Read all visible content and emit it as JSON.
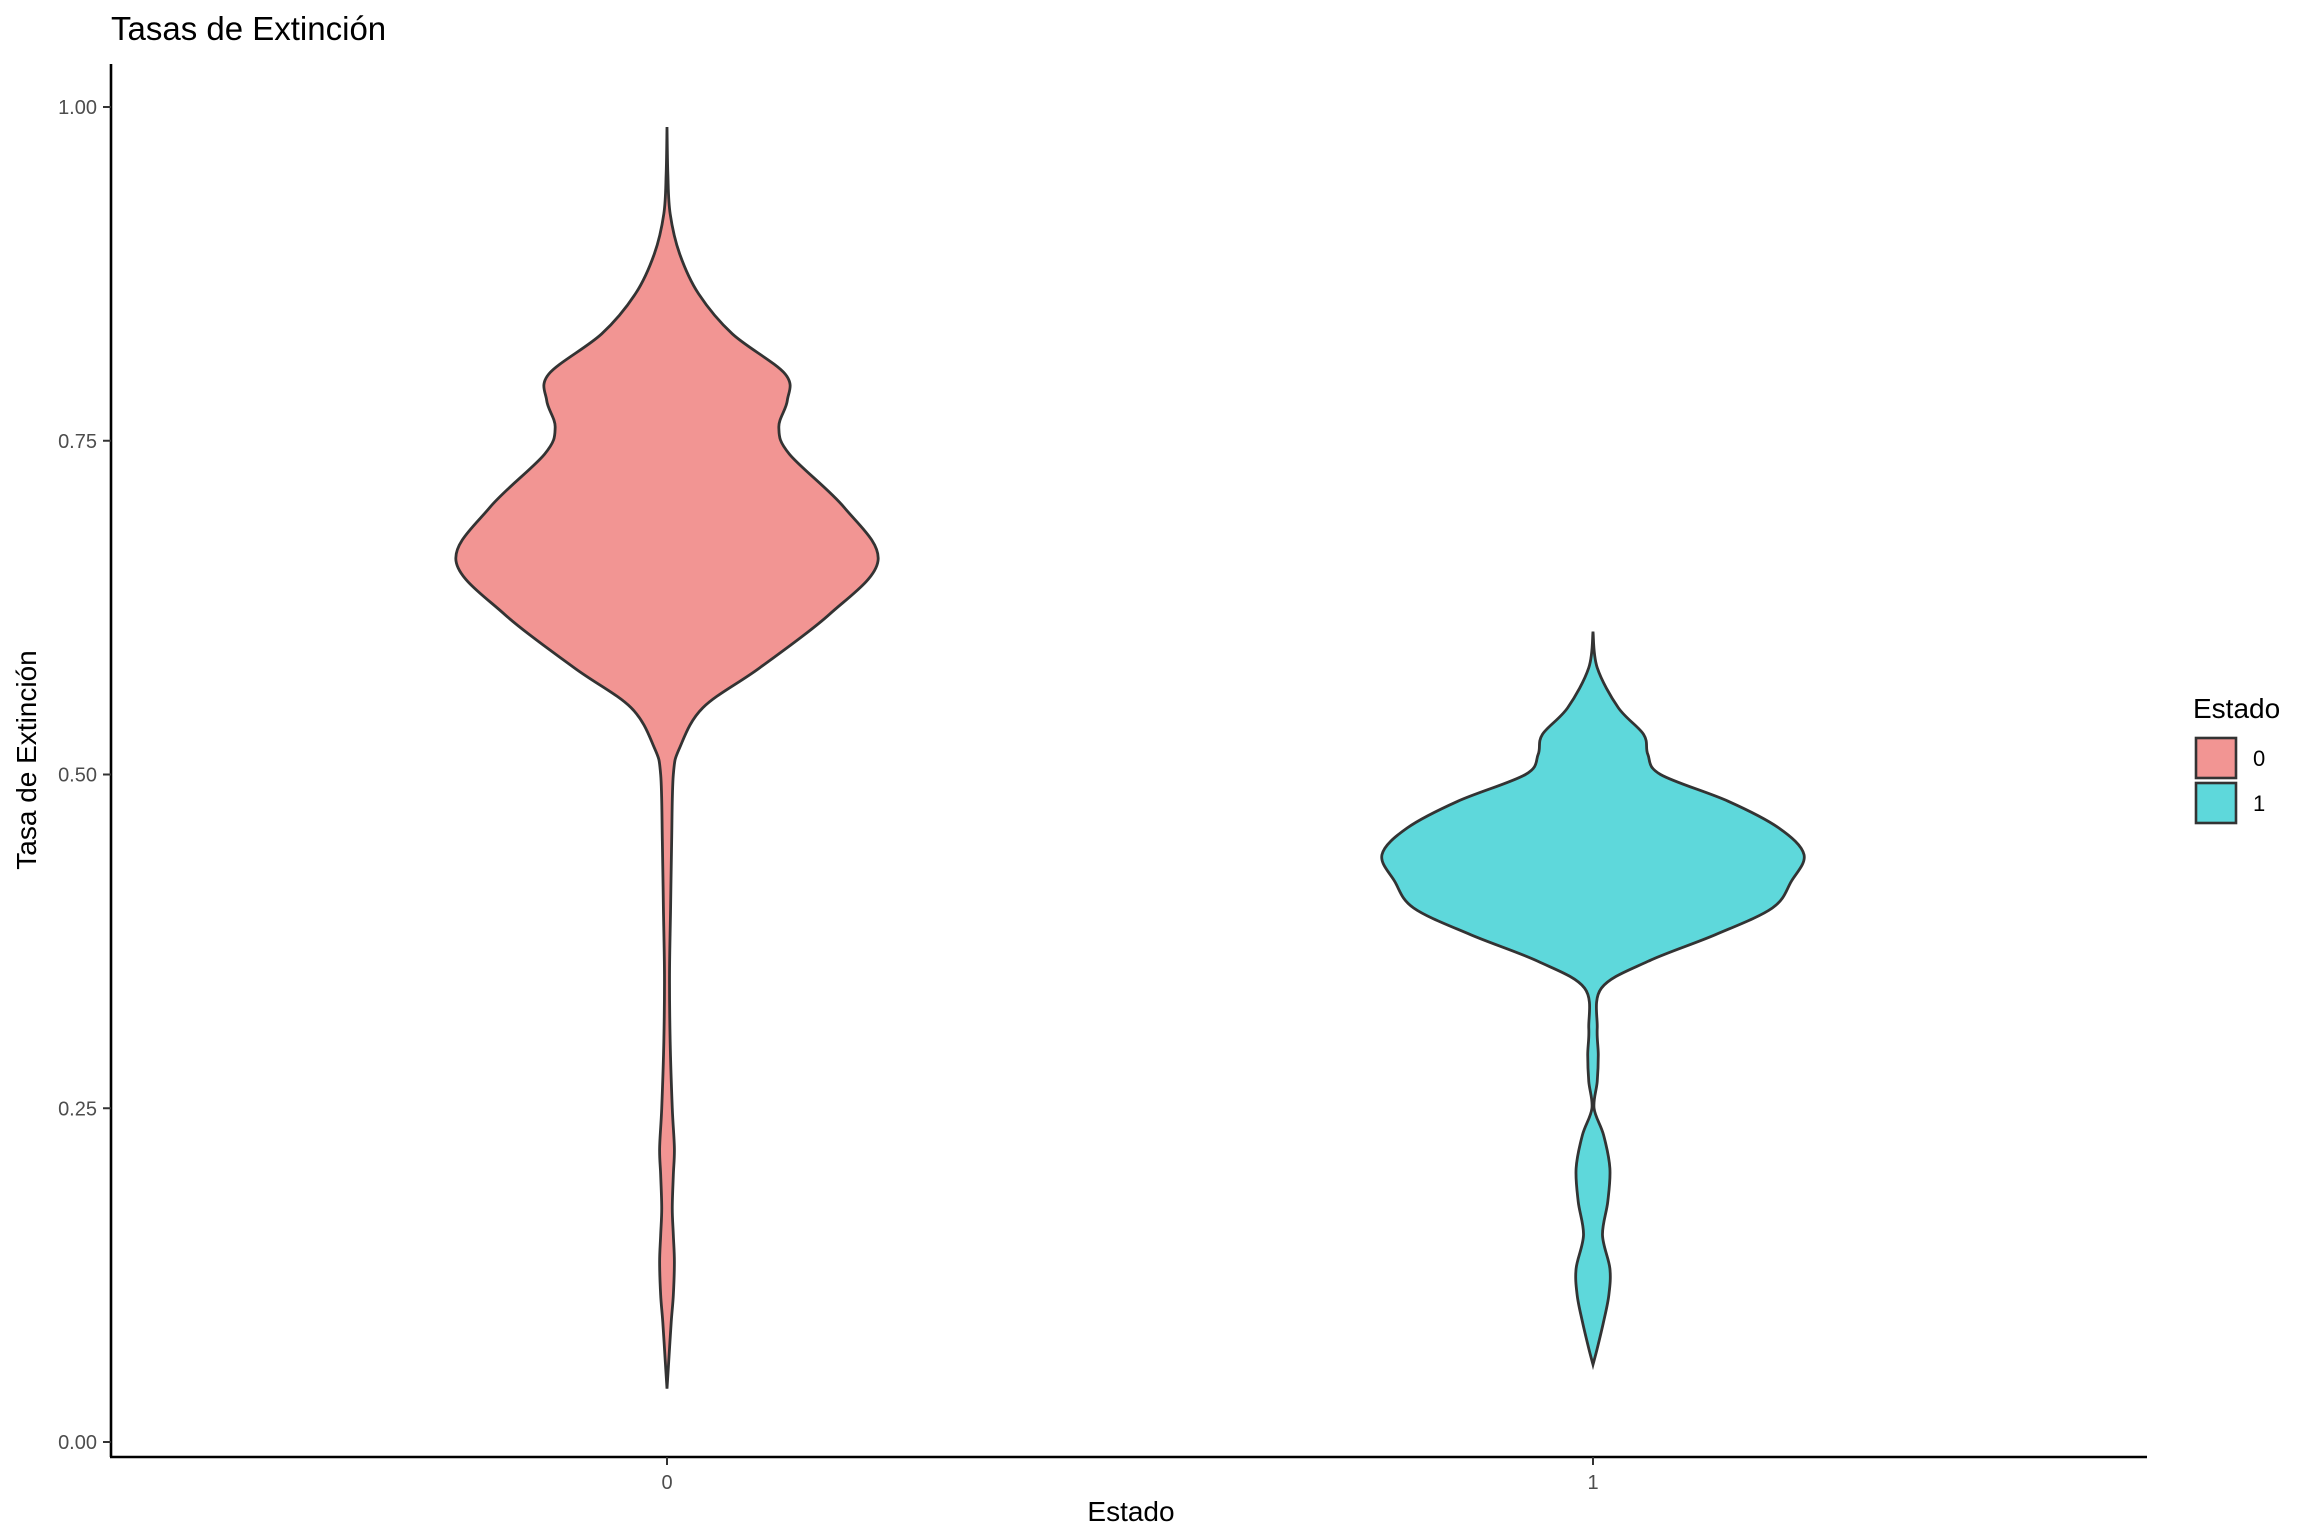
{
  "chart_data": {
    "type": "violin",
    "title": "Tasas de Extinción",
    "xlabel": "Estado",
    "ylabel": "Tasa de Extinción",
    "categories": [
      "0",
      "1"
    ],
    "ylim": [
      0,
      1.0
    ],
    "y_ticks": [
      0.0,
      0.25,
      0.5,
      0.75,
      1.0
    ],
    "y_tick_labels": [
      "0.00",
      "0.25",
      "0.50",
      "0.75",
      "1.00"
    ],
    "grid": false,
    "legend": {
      "title": "Estado",
      "position": "right",
      "entries": [
        {
          "label": "0",
          "color": "#F29593"
        },
        {
          "label": "1",
          "color": "#5ED8DB"
        }
      ]
    },
    "series": [
      {
        "category": "0",
        "color": "#F29593",
        "y_range": [
          0.04,
          0.985
        ],
        "density_profile": [
          [
            0.04,
            0.0
          ],
          [
            0.06,
            0.008
          ],
          [
            0.09,
            0.02
          ],
          [
            0.11,
            0.03
          ],
          [
            0.135,
            0.035
          ],
          [
            0.155,
            0.03
          ],
          [
            0.175,
            0.025
          ],
          [
            0.2,
            0.03
          ],
          [
            0.22,
            0.035
          ],
          [
            0.25,
            0.025
          ],
          [
            0.3,
            0.015
          ],
          [
            0.35,
            0.012
          ],
          [
            0.4,
            0.017
          ],
          [
            0.45,
            0.022
          ],
          [
            0.5,
            0.03
          ],
          [
            0.52,
            0.06
          ],
          [
            0.55,
            0.17
          ],
          [
            0.58,
            0.44
          ],
          [
            0.62,
            0.77
          ],
          [
            0.66,
            1.0
          ],
          [
            0.7,
            0.84
          ],
          [
            0.74,
            0.58
          ],
          [
            0.76,
            0.53
          ],
          [
            0.78,
            0.57
          ],
          [
            0.8,
            0.56
          ],
          [
            0.83,
            0.31
          ],
          [
            0.86,
            0.15
          ],
          [
            0.89,
            0.06
          ],
          [
            0.92,
            0.015
          ],
          [
            0.95,
            0.004
          ],
          [
            0.985,
            0.0
          ]
        ]
      },
      {
        "category": "1",
        "color": "#5ED8DB",
        "y_range": [
          0.058,
          0.607
        ],
        "density_profile": [
          [
            0.058,
            0.0
          ],
          [
            0.07,
            0.02
          ],
          [
            0.09,
            0.05
          ],
          [
            0.11,
            0.075
          ],
          [
            0.13,
            0.08
          ],
          [
            0.155,
            0.045
          ],
          [
            0.18,
            0.07
          ],
          [
            0.205,
            0.08
          ],
          [
            0.23,
            0.05
          ],
          [
            0.25,
            0.005
          ],
          [
            0.27,
            0.02
          ],
          [
            0.29,
            0.025
          ],
          [
            0.31,
            0.02
          ],
          [
            0.34,
            0.04
          ],
          [
            0.36,
            0.26
          ],
          [
            0.38,
            0.58
          ],
          [
            0.4,
            0.85
          ],
          [
            0.42,
            0.94
          ],
          [
            0.44,
            1.0
          ],
          [
            0.46,
            0.88
          ],
          [
            0.48,
            0.64
          ],
          [
            0.5,
            0.32
          ],
          [
            0.515,
            0.26
          ],
          [
            0.53,
            0.24
          ],
          [
            0.55,
            0.12
          ],
          [
            0.58,
            0.02
          ],
          [
            0.607,
            0.0
          ]
        ]
      }
    ]
  }
}
